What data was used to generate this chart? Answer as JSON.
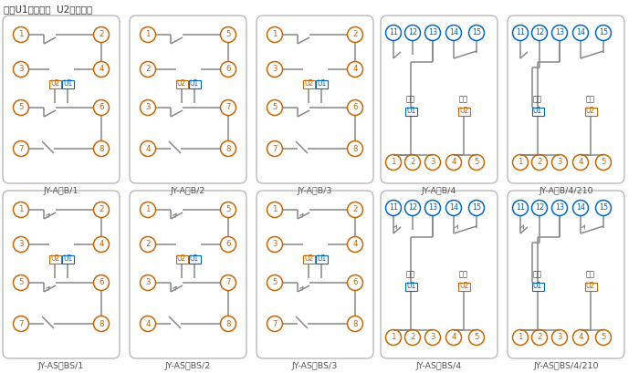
{
  "title_note": "注：U1辅助电源  U2整定电压",
  "background": "#ffffff",
  "box_labels_row0": [
    "JY-A，B/1",
    "JY-A，B/2",
    "JY-A，B/3",
    "JY-A，B/4",
    "JY-A，B/4/210"
  ],
  "box_labels_row1": [
    "JY-AS，BS/1",
    "JY-AS，BS/2",
    "JY-AS，BS/3",
    "JY-AS，BS/4",
    "JY-AS，BS/4/210"
  ],
  "cc": "#cc6600",
  "ccb": "#0066cc",
  "lc": "#888888",
  "bc": "#bbbbbb",
  "u2ec": "#cc6600",
  "u1ec": "#0066cc",
  "u2tc": "#cc6600",
  "u1tc": "#0066cc",
  "elec_color": "#333333",
  "label_color": "#555555"
}
